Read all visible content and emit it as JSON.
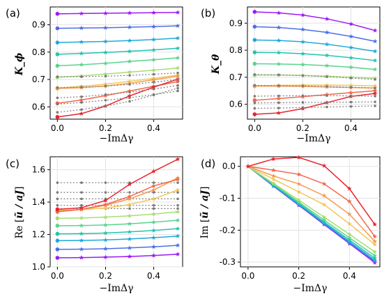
{
  "chart_data": [
    {
      "type": "line",
      "panel_label": "(a)",
      "ylabel": "K_ϕ",
      "xlabel": "−ImΔγ",
      "xlim": [
        -0.03,
        0.52
      ],
      "ylim": [
        0.555,
        0.965
      ],
      "xticks": [
        "0.0",
        "0.2",
        "0.4"
      ],
      "yticks": [
        "0.6",
        "0.7",
        "0.8",
        "0.9"
      ],
      "x": [
        0.0,
        0.1,
        0.2,
        0.3,
        0.4,
        0.5
      ],
      "grid": true,
      "series": [
        {
          "color": "#9b19f5",
          "values": [
            0.94,
            0.941,
            0.942,
            0.943,
            0.944,
            0.945
          ]
        },
        {
          "color": "#4c6fe8",
          "values": [
            0.887,
            0.888,
            0.889,
            0.891,
            0.893,
            0.896
          ]
        },
        {
          "color": "#1fa8dc",
          "values": [
            0.835,
            0.837,
            0.839,
            0.842,
            0.846,
            0.851
          ]
        },
        {
          "color": "#22c3b0",
          "values": [
            0.792,
            0.795,
            0.799,
            0.803,
            0.808,
            0.814
          ]
        },
        {
          "color": "#5ad38d",
          "values": [
            0.75,
            0.754,
            0.759,
            0.766,
            0.772,
            0.779
          ]
        },
        {
          "color": "#a7de70",
          "values": [
            0.708,
            0.713,
            0.72,
            0.727,
            0.734,
            0.742
          ]
        },
        {
          "color": "#f0c75a",
          "values": [
            0.669,
            0.675,
            0.683,
            0.693,
            0.704,
            0.716
          ]
        },
        {
          "color": "#f59a4f",
          "values": [
            0.667,
            0.67,
            0.676,
            0.686,
            0.699,
            0.712
          ]
        },
        {
          "color": "#f0684a",
          "values": [
            0.613,
            0.625,
            0.641,
            0.658,
            0.675,
            0.692
          ]
        },
        {
          "color": "#e8242c",
          "values": [
            0.563,
            0.575,
            0.603,
            0.64,
            0.672,
            0.701
          ]
        },
        {
          "color": "#7a7a7a",
          "dashed": true,
          "values": [
            0.71,
            0.71,
            0.712,
            0.715,
            0.719,
            0.724
          ]
        },
        {
          "color": "#7a7a7a",
          "dashed": true,
          "values": [
            0.67,
            0.672,
            0.676,
            0.682,
            0.69,
            0.7
          ]
        },
        {
          "color": "#7a7a7a",
          "dashed": true,
          "values": [
            0.633,
            0.637,
            0.645,
            0.654,
            0.665,
            0.678
          ]
        },
        {
          "color": "#7a7a7a",
          "dashed": true,
          "values": [
            0.61,
            0.616,
            0.624,
            0.633,
            0.645,
            0.658
          ]
        },
        {
          "color": "#7a7a7a",
          "dashed": true,
          "values": [
            0.58,
            0.59,
            0.603,
            0.62,
            0.643,
            0.668
          ]
        }
      ]
    },
    {
      "type": "line",
      "panel_label": "(b)",
      "ylabel": "K_θ",
      "xlabel": "−ImΔγ",
      "xlim": [
        -0.03,
        0.52
      ],
      "ylim": [
        0.545,
        0.96
      ],
      "xticks": [
        "0.0",
        "0.2",
        "0.4"
      ],
      "yticks": [
        "0.6",
        "0.7",
        "0.8",
        "0.9"
      ],
      "x": [
        0.0,
        0.1,
        0.2,
        0.3,
        0.4,
        0.5
      ],
      "grid": true,
      "series": [
        {
          "color": "#9b19f5",
          "values": [
            0.942,
            0.938,
            0.93,
            0.916,
            0.897,
            0.873
          ]
        },
        {
          "color": "#4c6fe8",
          "values": [
            0.887,
            0.884,
            0.877,
            0.866,
            0.851,
            0.833
          ]
        },
        {
          "color": "#1fa8dc",
          "values": [
            0.838,
            0.836,
            0.831,
            0.822,
            0.81,
            0.796
          ]
        },
        {
          "color": "#22c3b0",
          "values": [
            0.792,
            0.791,
            0.787,
            0.781,
            0.772,
            0.762
          ]
        },
        {
          "color": "#5ad38d",
          "values": [
            0.75,
            0.749,
            0.747,
            0.743,
            0.737,
            0.729
          ]
        },
        {
          "color": "#a7de70",
          "values": [
            0.708,
            0.708,
            0.707,
            0.704,
            0.7,
            0.696
          ]
        },
        {
          "color": "#f0c75a",
          "values": [
            0.669,
            0.67,
            0.671,
            0.671,
            0.67,
            0.668
          ]
        },
        {
          "color": "#f59a4f",
          "values": [
            0.667,
            0.667,
            0.666,
            0.664,
            0.662,
            0.66
          ]
        },
        {
          "color": "#f0684a",
          "values": [
            0.615,
            0.621,
            0.628,
            0.636,
            0.643,
            0.65
          ]
        },
        {
          "color": "#e8242c",
          "values": [
            0.563,
            0.568,
            0.584,
            0.606,
            0.629,
            0.64
          ]
        },
        {
          "color": "#7a7a7a",
          "dashed": true,
          "values": [
            0.71,
            0.709,
            0.706,
            0.702,
            0.697,
            0.692
          ]
        },
        {
          "color": "#7a7a7a",
          "dashed": true,
          "values": [
            0.67,
            0.669,
            0.668,
            0.666,
            0.663,
            0.66
          ]
        },
        {
          "color": "#7a7a7a",
          "dashed": true,
          "values": [
            0.63,
            0.631,
            0.632,
            0.632,
            0.631,
            0.63
          ]
        },
        {
          "color": "#7a7a7a",
          "dashed": true,
          "values": [
            0.605,
            0.606,
            0.607,
            0.607,
            0.608,
            0.609
          ]
        },
        {
          "color": "#7a7a7a",
          "dashed": true,
          "values": [
            0.585,
            0.586,
            0.588,
            0.59,
            0.592,
            0.594
          ]
        }
      ]
    },
    {
      "type": "line",
      "panel_label": "(c)",
      "ylabel_prefix": "Re [",
      "ylabel_var": "ũ / aJ",
      "ylabel_suffix": "]",
      "xlabel": "−ImΔγ",
      "xlim": [
        -0.03,
        0.52
      ],
      "ylim": [
        1.0,
        1.68
      ],
      "xticks": [
        "0.0",
        "0.2",
        "0.4"
      ],
      "yticks": [
        "1.0",
        "1.2",
        "1.4",
        "1.6"
      ],
      "x": [
        0.0,
        0.1,
        0.2,
        0.3,
        0.4,
        0.5
      ],
      "grid": true,
      "series": [
        {
          "color": "#7a7a7a",
          "dashed": true,
          "values": [
            1.52,
            1.52,
            1.52,
            1.52,
            1.52,
            1.52
          ]
        },
        {
          "color": "#7a7a7a",
          "dashed": true,
          "values": [
            1.46,
            1.46,
            1.46,
            1.46,
            1.46,
            1.46
          ]
        },
        {
          "color": "#7a7a7a",
          "dashed": true,
          "values": [
            1.42,
            1.42,
            1.42,
            1.42,
            1.42,
            1.42
          ]
        },
        {
          "color": "#7a7a7a",
          "dashed": true,
          "values": [
            1.38,
            1.38,
            1.38,
            1.38,
            1.38,
            1.38
          ]
        },
        {
          "color": "#7a7a7a",
          "dashed": true,
          "values": [
            1.36,
            1.36,
            1.36,
            1.36,
            1.36,
            1.36
          ]
        },
        {
          "color": "#9b19f5",
          "values": [
            1.056,
            1.057,
            1.06,
            1.064,
            1.07,
            1.078
          ]
        },
        {
          "color": "#4c6fe8",
          "values": [
            1.108,
            1.109,
            1.112,
            1.117,
            1.124,
            1.133
          ]
        },
        {
          "color": "#1fa8dc",
          "values": [
            1.162,
            1.163,
            1.166,
            1.172,
            1.18,
            1.19
          ]
        },
        {
          "color": "#22c3b0",
          "values": [
            1.204,
            1.205,
            1.209,
            1.216,
            1.225,
            1.236
          ]
        },
        {
          "color": "#5ad38d",
          "values": [
            1.254,
            1.255,
            1.259,
            1.266,
            1.276,
            1.288
          ]
        },
        {
          "color": "#a7de70",
          "values": [
            1.3,
            1.302,
            1.307,
            1.315,
            1.326,
            1.34
          ]
        },
        {
          "color": "#f0c75a",
          "values": [
            1.35,
            1.353,
            1.363,
            1.385,
            1.42,
            1.475
          ]
        },
        {
          "color": "#f59a4f",
          "values": [
            1.344,
            1.355,
            1.38,
            1.42,
            1.475,
            1.55
          ]
        },
        {
          "color": "#f0684a",
          "values": [
            1.34,
            1.355,
            1.385,
            1.435,
            1.5,
            1.54
          ]
        },
        {
          "color": "#e8242c",
          "values": [
            1.355,
            1.365,
            1.41,
            1.51,
            1.59,
            1.665
          ]
        }
      ]
    },
    {
      "type": "line",
      "panel_label": "(d)",
      "ylabel_prefix": "Im [",
      "ylabel_var": "ũ / aJ",
      "ylabel_suffix": "]",
      "xlabel": "−ImΔγ",
      "xlim": [
        -0.03,
        0.52
      ],
      "ylim": [
        -0.315,
        0.03
      ],
      "xticks": [
        "0.0",
        "0.2",
        "0.4"
      ],
      "yticks": [
        "0.0",
        "-0.1",
        "-0.2",
        "-0.3"
      ],
      "ytick_values": [
        0.0,
        -0.1,
        -0.2,
        -0.3
      ],
      "x": [
        0.0,
        0.1,
        0.2,
        0.3,
        0.4,
        0.5
      ],
      "grid": true,
      "series": [
        {
          "color": "#9b19f5",
          "values": [
            0.0,
            -0.062,
            -0.122,
            -0.182,
            -0.242,
            -0.302
          ]
        },
        {
          "color": "#4c6fe8",
          "values": [
            0.0,
            -0.061,
            -0.121,
            -0.18,
            -0.24,
            -0.298
          ]
        },
        {
          "color": "#1fa8dc",
          "values": [
            0.0,
            -0.06,
            -0.119,
            -0.178,
            -0.236,
            -0.294
          ]
        },
        {
          "color": "#22c3b0",
          "values": [
            0.0,
            -0.058,
            -0.116,
            -0.174,
            -0.231,
            -0.288
          ]
        },
        {
          "color": "#5ad38d",
          "values": [
            0.0,
            -0.056,
            -0.112,
            -0.168,
            -0.224,
            -0.28
          ]
        },
        {
          "color": "#a7de70",
          "values": [
            0.0,
            -0.053,
            -0.106,
            -0.159,
            -0.213,
            -0.268
          ]
        },
        {
          "color": "#f0c75a",
          "values": [
            0.0,
            -0.04,
            -0.08,
            -0.12,
            -0.18,
            -0.245
          ]
        },
        {
          "color": "#f59a4f",
          "values": [
            0.0,
            -0.03,
            -0.055,
            -0.092,
            -0.15,
            -0.235
          ]
        },
        {
          "color": "#f0684a",
          "values": [
            0.0,
            -0.012,
            -0.025,
            -0.055,
            -0.11,
            -0.22
          ]
        },
        {
          "color": "#e8242c",
          "values": [
            0.0,
            0.023,
            0.028,
            0.002,
            -0.07,
            -0.182
          ]
        }
      ]
    }
  ]
}
